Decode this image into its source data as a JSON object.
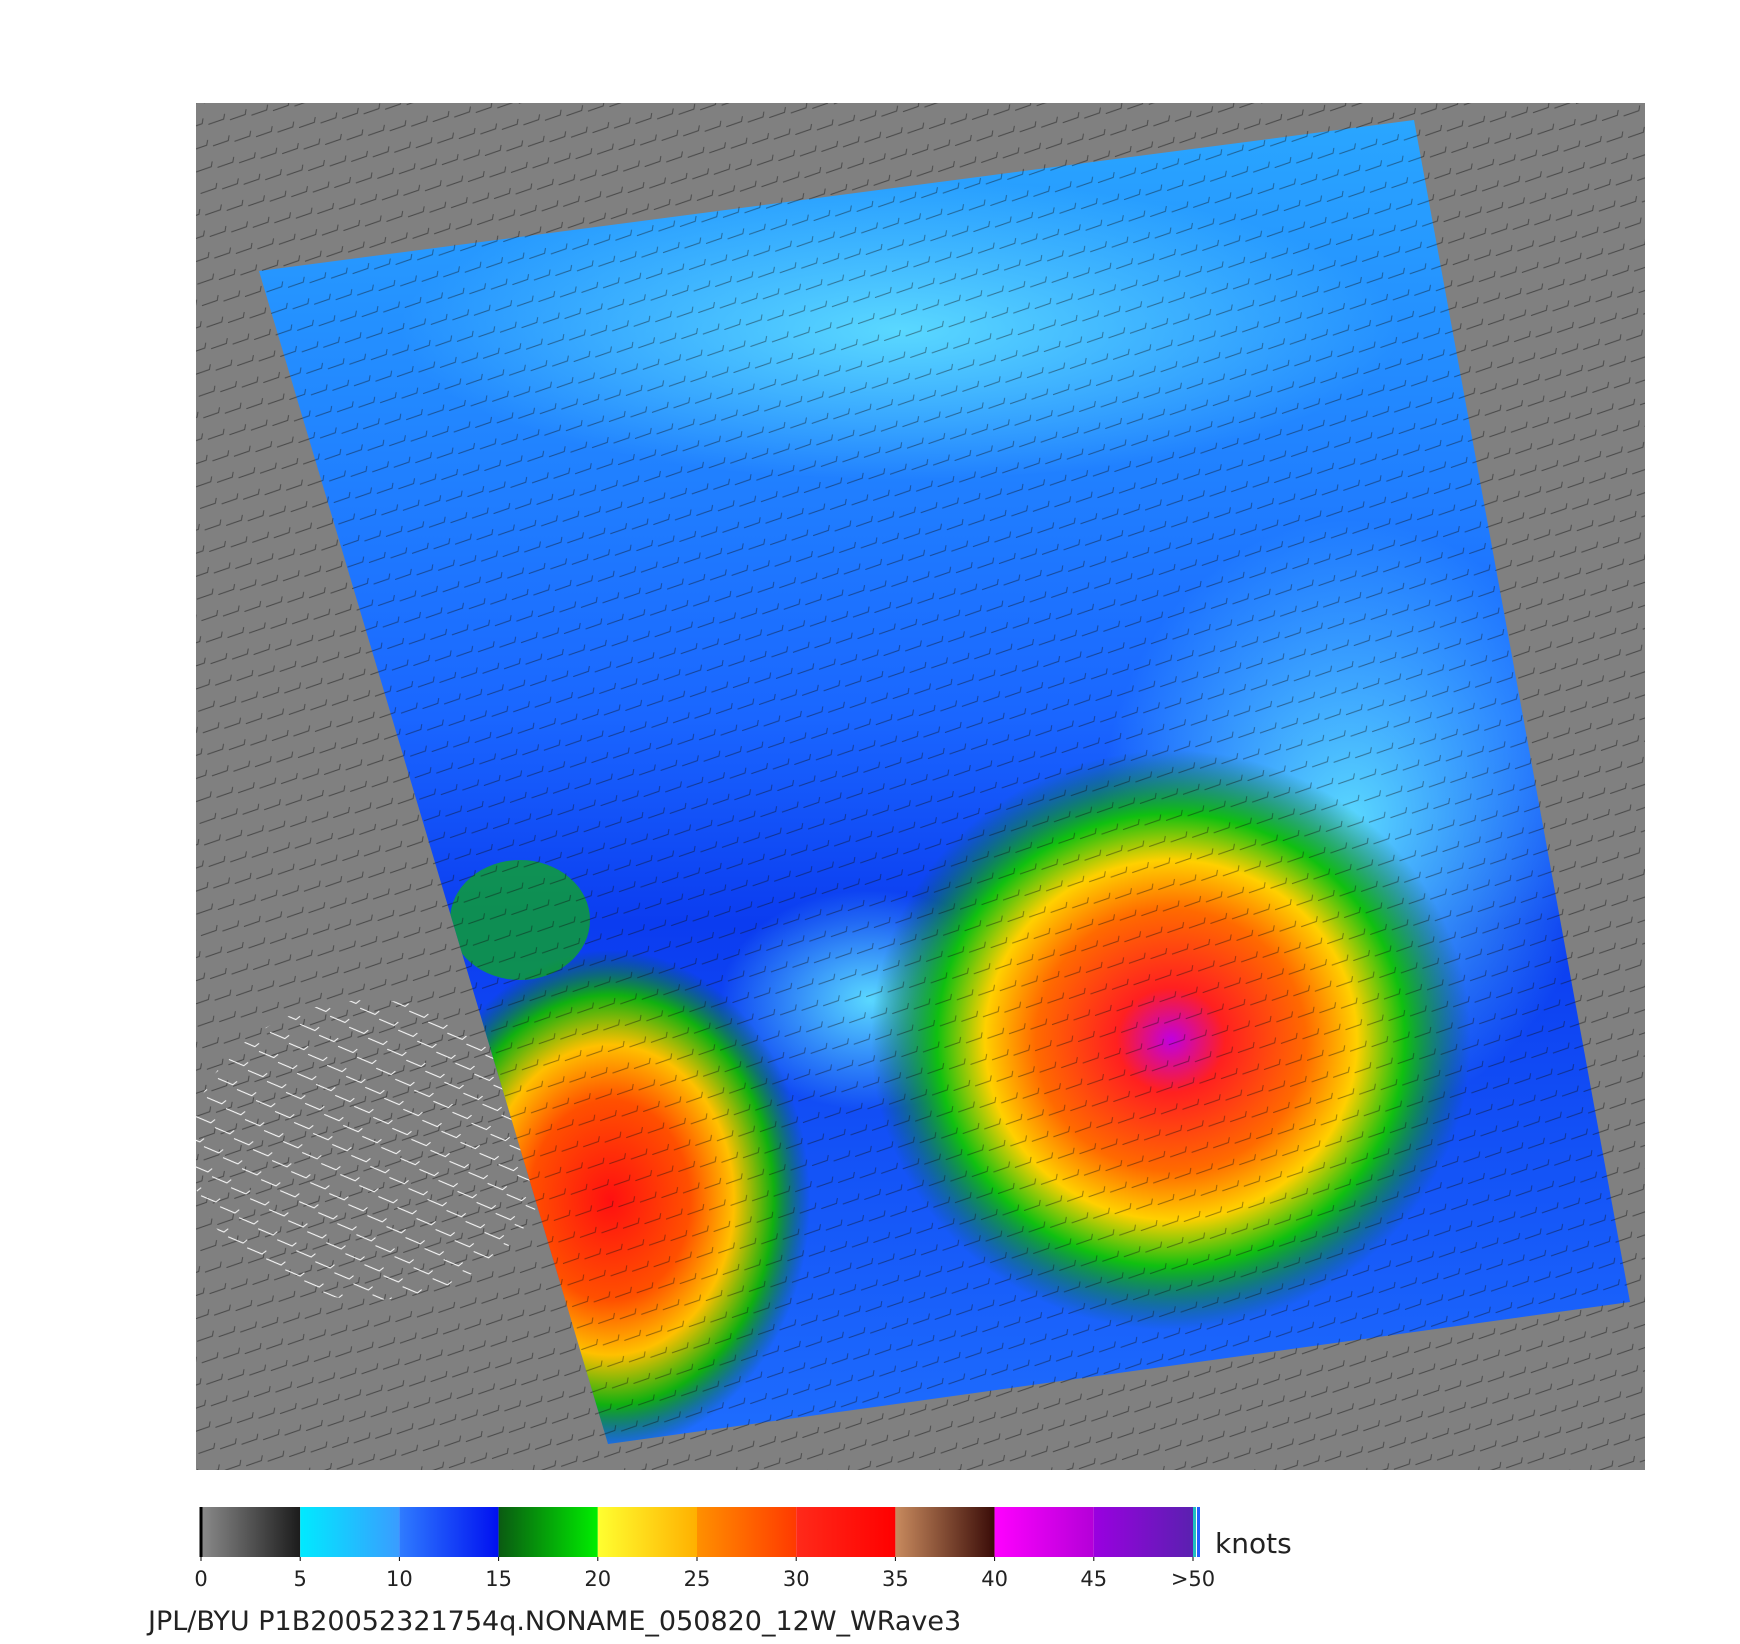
{
  "colorbar": {
    "unit": "knots",
    "range": [
      0,
      50
    ],
    "ticks": [
      0,
      5,
      10,
      15,
      20,
      25,
      30,
      35,
      40,
      45,
      {
        "value": 50,
        "label": ">50"
      }
    ],
    "segments": [
      {
        "from": 0,
        "to": 5,
        "colors": [
          "#8a8a8a",
          "#1c1c1c"
        ]
      },
      {
        "from": 5,
        "to": 10,
        "colors": [
          "#00eaff",
          "#3a9cff"
        ]
      },
      {
        "from": 10,
        "to": 15,
        "colors": [
          "#2f7cff",
          "#0010f0"
        ]
      },
      {
        "from": 15,
        "to": 20,
        "colors": [
          "#0a5a12",
          "#00ee00"
        ]
      },
      {
        "from": 20,
        "to": 25,
        "colors": [
          "#ffff30",
          "#ffb000"
        ]
      },
      {
        "from": 25,
        "to": 30,
        "colors": [
          "#ff9000",
          "#ff3a00"
        ]
      },
      {
        "from": 30,
        "to": 35,
        "colors": [
          "#ff2a1a",
          "#ff0000"
        ]
      },
      {
        "from": 35,
        "to": 40,
        "colors": [
          "#c88a5e",
          "#3a0c08"
        ]
      },
      {
        "from": 40,
        "to": 45,
        "colors": [
          "#ff00ff",
          "#b400d8"
        ]
      },
      {
        "from": 45,
        "to": 50,
        "colors": [
          "#9a00e0",
          "#5a20b0"
        ]
      }
    ]
  },
  "footer": "JPL/BYU  P1B20052321754q.NONAME_050820_12W_WRave3"
}
